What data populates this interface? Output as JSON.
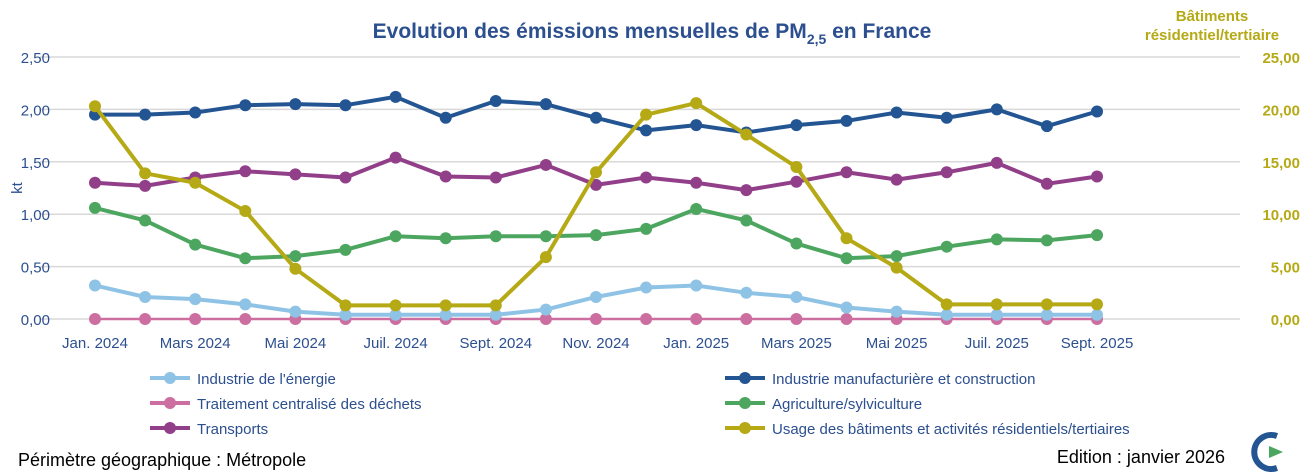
{
  "chart_data": {
    "type": "line",
    "title": "Evolution des émissions mensuelles de PM",
    "title_sub": "2,5",
    "title_suffix": " en France",
    "ylabel": "kt",
    "ylim": [
      0,
      2.5
    ],
    "y2label": [
      "Bâtiments",
      "résidentiel/tertiaire"
    ],
    "y2lim": [
      0,
      25
    ],
    "yticks": [
      "0,00",
      "0,50",
      "1,00",
      "1,50",
      "2,00",
      "2,50"
    ],
    "y2ticks": [
      "0,00",
      "5,00",
      "10,00",
      "15,00",
      "20,00",
      "25,00"
    ],
    "grid": true,
    "legend_position": "bottom",
    "x": [
      "Jan. 2024",
      "Févr. 2024",
      "Mars 2024",
      "Avr. 2024",
      "Mai 2024",
      "Juin 2024",
      "Juil. 2024",
      "Août 2024",
      "Sept. 2024",
      "Oct. 2024",
      "Nov. 2024",
      "Déc. 2024",
      "Jan. 2025",
      "Févr. 2025",
      "Mars 2025",
      "Avr. 2025",
      "Mai 2025",
      "Juin 2025",
      "Juil. 2025",
      "Août 2025",
      "Sept. 2025"
    ],
    "xticklabels": [
      "Jan. 2024",
      "Mars 2024",
      "Mai 2024",
      "Juil. 2024",
      "Sept. 2024",
      "Nov. 2024",
      "Jan. 2025",
      "Mars 2025",
      "Mai 2025",
      "Juil. 2025",
      "Sept. 2025"
    ],
    "series": [
      {
        "name": "Industrie de l'énergie",
        "color": "#8fc3e6",
        "axis": "left",
        "values": [
          0.32,
          0.21,
          0.19,
          0.14,
          0.07,
          0.04,
          0.04,
          0.04,
          0.04,
          0.09,
          0.21,
          0.3,
          0.32,
          0.25,
          0.21,
          0.11,
          0.07,
          0.04,
          0.04,
          0.04,
          0.04
        ]
      },
      {
        "name": "Industrie manufacturière et construction",
        "color": "#235593",
        "axis": "left",
        "values": [
          1.95,
          1.95,
          1.97,
          2.04,
          2.05,
          2.04,
          2.12,
          1.92,
          2.08,
          2.05,
          1.92,
          1.8,
          1.85,
          1.78,
          1.85,
          1.89,
          1.97,
          1.92,
          2.0,
          1.84,
          1.98
        ]
      },
      {
        "name": "Traitement centralisé des déchets",
        "color": "#cc6fa0",
        "axis": "left",
        "values": [
          0,
          0,
          0,
          0,
          0,
          0,
          0,
          0,
          0,
          0,
          0,
          0,
          0,
          0,
          0,
          0,
          0,
          0,
          0,
          0,
          0
        ]
      },
      {
        "name": "Agriculture/sylviculture",
        "color": "#4da660",
        "axis": "left",
        "values": [
          1.06,
          0.94,
          0.71,
          0.58,
          0.6,
          0.66,
          0.79,
          0.77,
          0.79,
          0.79,
          0.8,
          0.86,
          1.05,
          0.94,
          0.72,
          0.58,
          0.6,
          0.69,
          0.76,
          0.75,
          0.8
        ]
      },
      {
        "name": "Transports",
        "color": "#923f8a",
        "axis": "left",
        "values": [
          1.3,
          1.27,
          1.35,
          1.41,
          1.38,
          1.35,
          1.54,
          1.36,
          1.35,
          1.47,
          1.28,
          1.35,
          1.3,
          1.23,
          1.31,
          1.4,
          1.33,
          1.4,
          1.49,
          1.29,
          1.36
        ]
      },
      {
        "name": "Usage des bâtiments et activités résidentiels/tertiaires",
        "color": "#b5a916",
        "axis": "right",
        "values": [
          20.3,
          13.9,
          13.0,
          10.3,
          4.8,
          1.3,
          1.3,
          1.3,
          1.3,
          5.9,
          14.0,
          19.5,
          20.6,
          17.6,
          14.5,
          7.7,
          4.9,
          1.4,
          1.4,
          1.4,
          1.4
        ]
      }
    ]
  },
  "footer": {
    "perimeter": "Périmètre géographique : Métropole",
    "edition": "Edition : janvier 2026"
  },
  "colors": {
    "title": "#2c4f8f",
    "right_axis": "#b5a916",
    "left_axis": "#2c4f8f",
    "grid": "#d9d9d9"
  }
}
